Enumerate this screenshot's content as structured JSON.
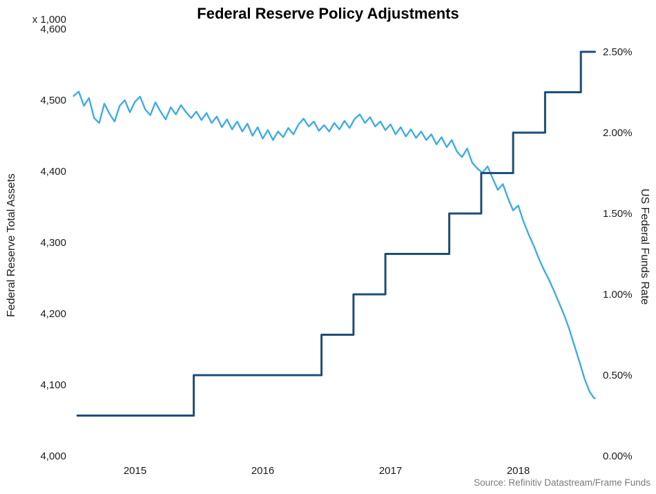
{
  "source_note": "Source: Refinitiv Datastream/Frame Funds",
  "chart_data": {
    "type": "line",
    "title": "Federal Reserve Policy Adjustments",
    "grid": false,
    "legend": "none",
    "xlim": [
      2015.0,
      2019.1
    ],
    "ylim_left": [
      4000,
      4600
    ],
    "ylim_right": [
      0,
      2.5
    ],
    "x_axis": {
      "ticks": [
        {
          "v": 2015.5,
          "label": "2015"
        },
        {
          "v": 2016.5,
          "label": "2016"
        },
        {
          "v": 2017.5,
          "label": "2017"
        },
        {
          "v": 2018.5,
          "label": "2018"
        }
      ]
    },
    "left_axis": {
      "label": "Federal Reserve Total Assets",
      "unit_note": "x 1,000",
      "ticks": [
        {
          "v": 4000,
          "label": "4,000"
        },
        {
          "v": 4100,
          "label": "4,100"
        },
        {
          "v": 4200,
          "label": "4,200"
        },
        {
          "v": 4300,
          "label": "4,300"
        },
        {
          "v": 4400,
          "label": "4,400"
        },
        {
          "v": 4500,
          "label": "4,500"
        },
        {
          "v": 4600,
          "label": "4,600"
        }
      ]
    },
    "right_axis": {
      "label": "US Federal Funds Rate",
      "ticks": [
        {
          "v": 0.0,
          "label": "0.00%"
        },
        {
          "v": 0.5,
          "label": "0.50%"
        },
        {
          "v": 1.0,
          "label": "1.00%"
        },
        {
          "v": 1.5,
          "label": "1.50%"
        },
        {
          "v": 2.0,
          "label": "2.00%"
        },
        {
          "v": 2.5,
          "label": "2.50%"
        }
      ]
    },
    "series": [
      {
        "id": "assets",
        "name": "Federal Reserve Total Assets (x 1,000)",
        "axis": "left",
        "color": "#3fabe4",
        "width": 2.4,
        "points": [
          [
            2015.02,
            4506
          ],
          [
            2015.06,
            4512
          ],
          [
            2015.1,
            4492
          ],
          [
            2015.14,
            4503
          ],
          [
            2015.18,
            4475
          ],
          [
            2015.22,
            4468
          ],
          [
            2015.26,
            4495
          ],
          [
            2015.3,
            4481
          ],
          [
            2015.34,
            4470
          ],
          [
            2015.38,
            4492
          ],
          [
            2015.42,
            4500
          ],
          [
            2015.46,
            4483
          ],
          [
            2015.5,
            4498
          ],
          [
            2015.54,
            4505
          ],
          [
            2015.58,
            4487
          ],
          [
            2015.62,
            4479
          ],
          [
            2015.66,
            4497
          ],
          [
            2015.7,
            4484
          ],
          [
            2015.74,
            4473
          ],
          [
            2015.78,
            4490
          ],
          [
            2015.82,
            4480
          ],
          [
            2015.86,
            4493
          ],
          [
            2015.9,
            4483
          ],
          [
            2015.94,
            4475
          ],
          [
            2015.98,
            4484
          ],
          [
            2016.02,
            4472
          ],
          [
            2016.06,
            4482
          ],
          [
            2016.1,
            4468
          ],
          [
            2016.14,
            4477
          ],
          [
            2016.18,
            4462
          ],
          [
            2016.22,
            4473
          ],
          [
            2016.26,
            4459
          ],
          [
            2016.3,
            4470
          ],
          [
            2016.34,
            4456
          ],
          [
            2016.38,
            4467
          ],
          [
            2016.42,
            4450
          ],
          [
            2016.46,
            4462
          ],
          [
            2016.5,
            4446
          ],
          [
            2016.54,
            4458
          ],
          [
            2016.58,
            4444
          ],
          [
            2016.62,
            4456
          ],
          [
            2016.66,
            4448
          ],
          [
            2016.7,
            4461
          ],
          [
            2016.74,
            4452
          ],
          [
            2016.78,
            4466
          ],
          [
            2016.82,
            4474
          ],
          [
            2016.86,
            4463
          ],
          [
            2016.9,
            4470
          ],
          [
            2016.94,
            4457
          ],
          [
            2016.98,
            4465
          ],
          [
            2017.02,
            4456
          ],
          [
            2017.06,
            4468
          ],
          [
            2017.1,
            4459
          ],
          [
            2017.14,
            4471
          ],
          [
            2017.18,
            4461
          ],
          [
            2017.22,
            4474
          ],
          [
            2017.26,
            4480
          ],
          [
            2017.3,
            4468
          ],
          [
            2017.34,
            4476
          ],
          [
            2017.38,
            4463
          ],
          [
            2017.42,
            4470
          ],
          [
            2017.46,
            4458
          ],
          [
            2017.5,
            4466
          ],
          [
            2017.54,
            4452
          ],
          [
            2017.58,
            4462
          ],
          [
            2017.62,
            4449
          ],
          [
            2017.66,
            4459
          ],
          [
            2017.7,
            4447
          ],
          [
            2017.74,
            4456
          ],
          [
            2017.78,
            4444
          ],
          [
            2017.82,
            4452
          ],
          [
            2017.86,
            4438
          ],
          [
            2017.9,
            4448
          ],
          [
            2017.94,
            4434
          ],
          [
            2017.98,
            4444
          ],
          [
            2018.02,
            4428
          ],
          [
            2018.06,
            4420
          ],
          [
            2018.1,
            4432
          ],
          [
            2018.14,
            4412
          ],
          [
            2018.18,
            4404
          ],
          [
            2018.22,
            4398
          ],
          [
            2018.26,
            4407
          ],
          [
            2018.3,
            4390
          ],
          [
            2018.34,
            4374
          ],
          [
            2018.38,
            4382
          ],
          [
            2018.42,
            4362
          ],
          [
            2018.46,
            4345
          ],
          [
            2018.5,
            4352
          ],
          [
            2018.54,
            4330
          ],
          [
            2018.58,
            4312
          ],
          [
            2018.62,
            4296
          ],
          [
            2018.66,
            4278
          ],
          [
            2018.7,
            4262
          ],
          [
            2018.74,
            4248
          ],
          [
            2018.78,
            4232
          ],
          [
            2018.82,
            4215
          ],
          [
            2018.86,
            4198
          ],
          [
            2018.9,
            4178
          ],
          [
            2018.94,
            4155
          ],
          [
            2018.98,
            4132
          ],
          [
            2019.02,
            4108
          ],
          [
            2019.06,
            4090
          ],
          [
            2019.09,
            4082
          ],
          [
            2019.1,
            4081
          ]
        ]
      },
      {
        "id": "rate",
        "name": "US Federal Funds Rate (%)",
        "axis": "right",
        "color": "#1c4e78",
        "width": 3,
        "step": true,
        "points": [
          [
            2015.05,
            0.25
          ],
          [
            2015.96,
            0.25
          ],
          [
            2015.96,
            0.5
          ],
          [
            2016.96,
            0.5
          ],
          [
            2016.96,
            0.75
          ],
          [
            2017.21,
            0.75
          ],
          [
            2017.21,
            1.0
          ],
          [
            2017.46,
            1.0
          ],
          [
            2017.46,
            1.25
          ],
          [
            2017.96,
            1.25
          ],
          [
            2017.96,
            1.5
          ],
          [
            2018.21,
            1.5
          ],
          [
            2018.21,
            1.75
          ],
          [
            2018.46,
            1.75
          ],
          [
            2018.46,
            2.0
          ],
          [
            2018.71,
            2.0
          ],
          [
            2018.71,
            2.25
          ],
          [
            2018.99,
            2.25
          ],
          [
            2018.99,
            2.5
          ],
          [
            2019.1,
            2.5
          ]
        ]
      }
    ]
  }
}
